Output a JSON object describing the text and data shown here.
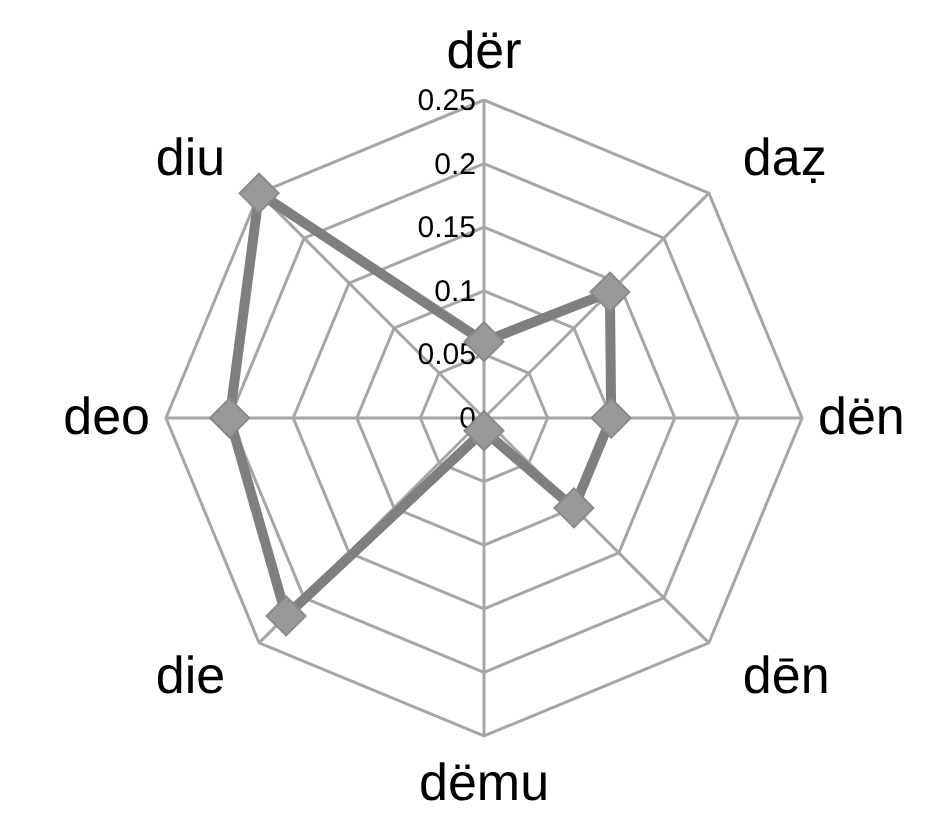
{
  "chart_data": {
    "type": "radar",
    "categories": [
      "dër",
      "daẓ",
      "dën",
      "dēn",
      "dëmu",
      "die",
      "deo",
      "diu"
    ],
    "series": [
      {
        "color": "#7f7f7f",
        "values": [
          0.06,
          0.14,
          0.1,
          0.1,
          0.01,
          0.22,
          0.2,
          0.25
        ]
      }
    ],
    "ylim": [
      0,
      0.25
    ],
    "yticks": [
      0,
      0.05,
      0.1,
      0.15,
      0.2,
      0.25
    ],
    "grid": true,
    "marker": "diamond"
  }
}
